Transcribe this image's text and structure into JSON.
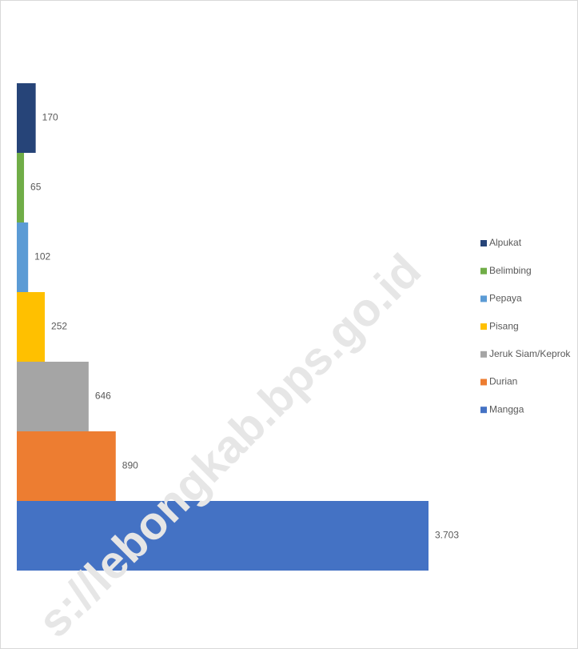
{
  "chart_data": {
    "type": "hbar",
    "categories": [
      "Alpukat",
      "Belimbing",
      "Pepaya",
      "Pisang",
      "Jeruk Siam/Keprok",
      "Durian",
      "Mangga"
    ],
    "values": [
      170,
      65,
      102,
      252,
      646,
      890,
      3703
    ],
    "value_labels": [
      "170",
      "65",
      "102",
      "252",
      "646",
      "890",
      "3.703"
    ],
    "colors": [
      "#264478",
      "#70ad47",
      "#5b9bd5",
      "#ffc000",
      "#a5a5a5",
      "#ed7d31",
      "#4472c4"
    ],
    "watermark": "s://lebongkab.bps.go.id"
  }
}
